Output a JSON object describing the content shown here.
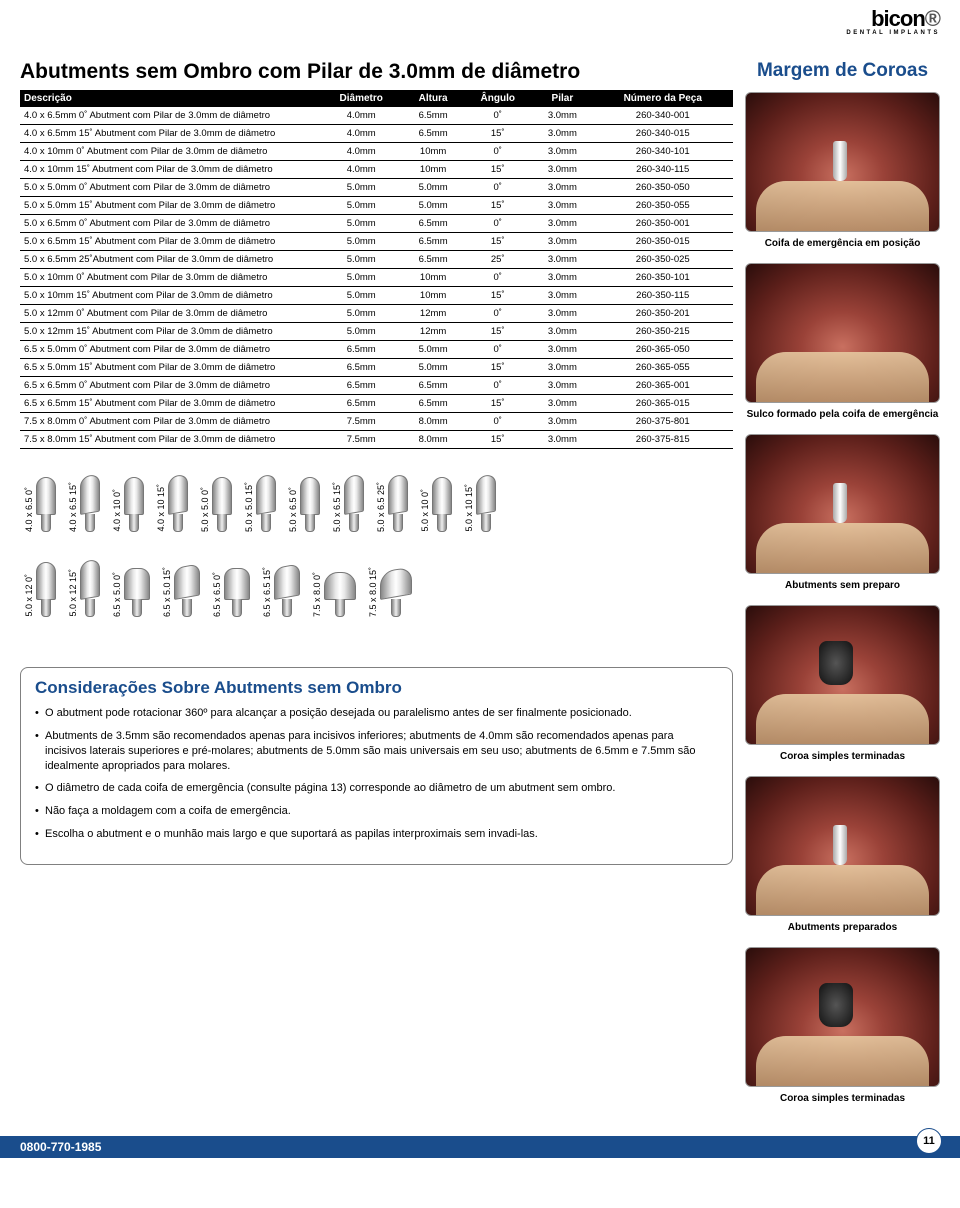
{
  "logo": {
    "brand": "bicon",
    "sub": "DENTAL IMPLANTS"
  },
  "title": "Abutments sem Ombro com Pilar de 3.0mm de diâmetro",
  "table": {
    "headers": [
      "Descrição",
      "Diâmetro",
      "Altura",
      "Ângulo",
      "Pilar",
      "Número da Peça"
    ],
    "rows": [
      [
        "4.0 x 6.5mm 0˚ Abutment com Pilar de 3.0mm de diâmetro",
        "4.0mm",
        "6.5mm",
        "0˚",
        "3.0mm",
        "260-340-001"
      ],
      [
        "4.0 x 6.5mm 15˚ Abutment com Pilar de 3.0mm de diâmetro",
        "4.0mm",
        "6.5mm",
        "15˚",
        "3.0mm",
        "260-340-015"
      ],
      [
        "4.0 x 10mm 0˚ Abutment com Pilar de 3.0mm de diâmetro",
        "4.0mm",
        "10mm",
        "0˚",
        "3.0mm",
        "260-340-101"
      ],
      [
        "4.0 x 10mm 15˚ Abutment com Pilar de 3.0mm de diâmetro",
        "4.0mm",
        "10mm",
        "15˚",
        "3.0mm",
        "260-340-115"
      ],
      [
        "5.0 x 5.0mm 0˚ Abutment com Pilar de 3.0mm de diâmetro",
        "5.0mm",
        "5.0mm",
        "0˚",
        "3.0mm",
        "260-350-050"
      ],
      [
        "5.0 x 5.0mm 15˚ Abutment com Pilar de 3.0mm de diâmetro",
        "5.0mm",
        "5.0mm",
        "15˚",
        "3.0mm",
        "260-350-055"
      ],
      [
        "5.0 x 6.5mm 0˚ Abutment com Pilar de 3.0mm de diâmetro",
        "5.0mm",
        "6.5mm",
        "0˚",
        "3.0mm",
        "260-350-001"
      ],
      [
        "5.0 x 6.5mm 15˚ Abutment com Pilar de 3.0mm de diâmetro",
        "5.0mm",
        "6.5mm",
        "15˚",
        "3.0mm",
        "260-350-015"
      ],
      [
        "5.0 x 6.5mm 25˚Abutment com Pilar de 3.0mm de diâmetro",
        "5.0mm",
        "6.5mm",
        "25˚",
        "3.0mm",
        "260-350-025"
      ],
      [
        "5.0 x 10mm 0˚ Abutment com Pilar de 3.0mm de diâmetro",
        "5.0mm",
        "10mm",
        "0˚",
        "3.0mm",
        "260-350-101"
      ],
      [
        "5.0 x 10mm 15˚ Abutment com Pilar de 3.0mm de diâmetro",
        "5.0mm",
        "10mm",
        "15˚",
        "3.0mm",
        "260-350-115"
      ],
      [
        "5.0 x 12mm 0˚ Abutment com Pilar de 3.0mm de diâmetro",
        "5.0mm",
        "12mm",
        "0˚",
        "3.0mm",
        "260-350-201"
      ],
      [
        "5.0 x 12mm 15˚ Abutment com Pilar de 3.0mm de diâmetro",
        "5.0mm",
        "12mm",
        "15˚",
        "3.0mm",
        "260-350-215"
      ],
      [
        "6.5 x 5.0mm 0˚ Abutment com Pilar de 3.0mm de diâmetro",
        "6.5mm",
        "5.0mm",
        "0˚",
        "3.0mm",
        "260-365-050"
      ],
      [
        "6.5 x 5.0mm 15˚ Abutment com Pilar de 3.0mm de diâmetro",
        "6.5mm",
        "5.0mm",
        "15˚",
        "3.0mm",
        "260-365-055"
      ],
      [
        "6.5 x 6.5mm 0˚ Abutment com Pilar de 3.0mm de diâmetro",
        "6.5mm",
        "6.5mm",
        "0˚",
        "3.0mm",
        "260-365-001"
      ],
      [
        "6.5 x 6.5mm 15˚ Abutment com Pilar de 3.0mm de diâmetro",
        "6.5mm",
        "6.5mm",
        "15˚",
        "3.0mm",
        "260-365-015"
      ],
      [
        "7.5 x 8.0mm 0˚ Abutment com Pilar de 3.0mm de diâmetro",
        "7.5mm",
        "8.0mm",
        "0˚",
        "3.0mm",
        "260-375-801"
      ],
      [
        "7.5 x 8.0mm 15˚ Abutment com Pilar de 3.0mm de diâmetro",
        "7.5mm",
        "8.0mm",
        "15˚",
        "3.0mm",
        "260-375-815"
      ]
    ]
  },
  "diagramRow1": [
    "4.0 x 6.5 0˚",
    "4.0 x 6.5 15˚",
    "4.0 x 10 0˚",
    "4.0 x 10 15˚",
    "5.0 x 5.0 0˚",
    "5.0 x 5.0 15˚",
    "5.0 x 6.5 0˚",
    "5.0 x 6.5 15˚",
    "5.0 x 6.5 25˚",
    "5.0 x 10 0˚",
    "5.0 x 10 15˚"
  ],
  "diagramRow2": [
    "5.0 x 12 0˚",
    "5.0 x 12 15˚",
    "6.5 x 5.0 0˚",
    "6.5 x 5.0 15˚",
    "6.5 x 6.5 0˚",
    "6.5 x 6.5 15˚",
    "7.5 x 8.0 0˚",
    "7.5 x 8.0 15˚"
  ],
  "considerations": {
    "title": "Considerações Sobre Abutments sem Ombro",
    "items": [
      "O abutment pode rotacionar 360º para alcançar a posição desejada ou paralelismo antes de ser finalmente posicionado.",
      "Abutments de 3.5mm são recomendados apenas para incisivos inferiores; abutments de 4.0mm são recomendados apenas para incisivos laterais superiores e pré-molares; abutments de 5.0mm são mais universais em seu uso; abutments de 6.5mm e 7.5mm são idealmente apropriados para molares.",
      "O diâmetro de cada coifa de emergência (consulte página 13) corresponde ao diâmetro de um abutment sem ombro.",
      "Não faça a moldagem com a coifa de emergência.",
      "Escolha o abutment e o munhão mais largo e que suportará as papilas interproximais sem invadi-las."
    ]
  },
  "sidebar": {
    "title": "Margem de Coroas",
    "captions": [
      "Coifa de emergência em posição",
      "Sulco formado pela coifa de emergência",
      "Abutments sem preparo",
      "Coroa simples terminadas",
      "Abutments preparados",
      "Coroa simples terminadas"
    ]
  },
  "footer": {
    "phone": "0800-770-1985",
    "pageNumber": "11"
  }
}
